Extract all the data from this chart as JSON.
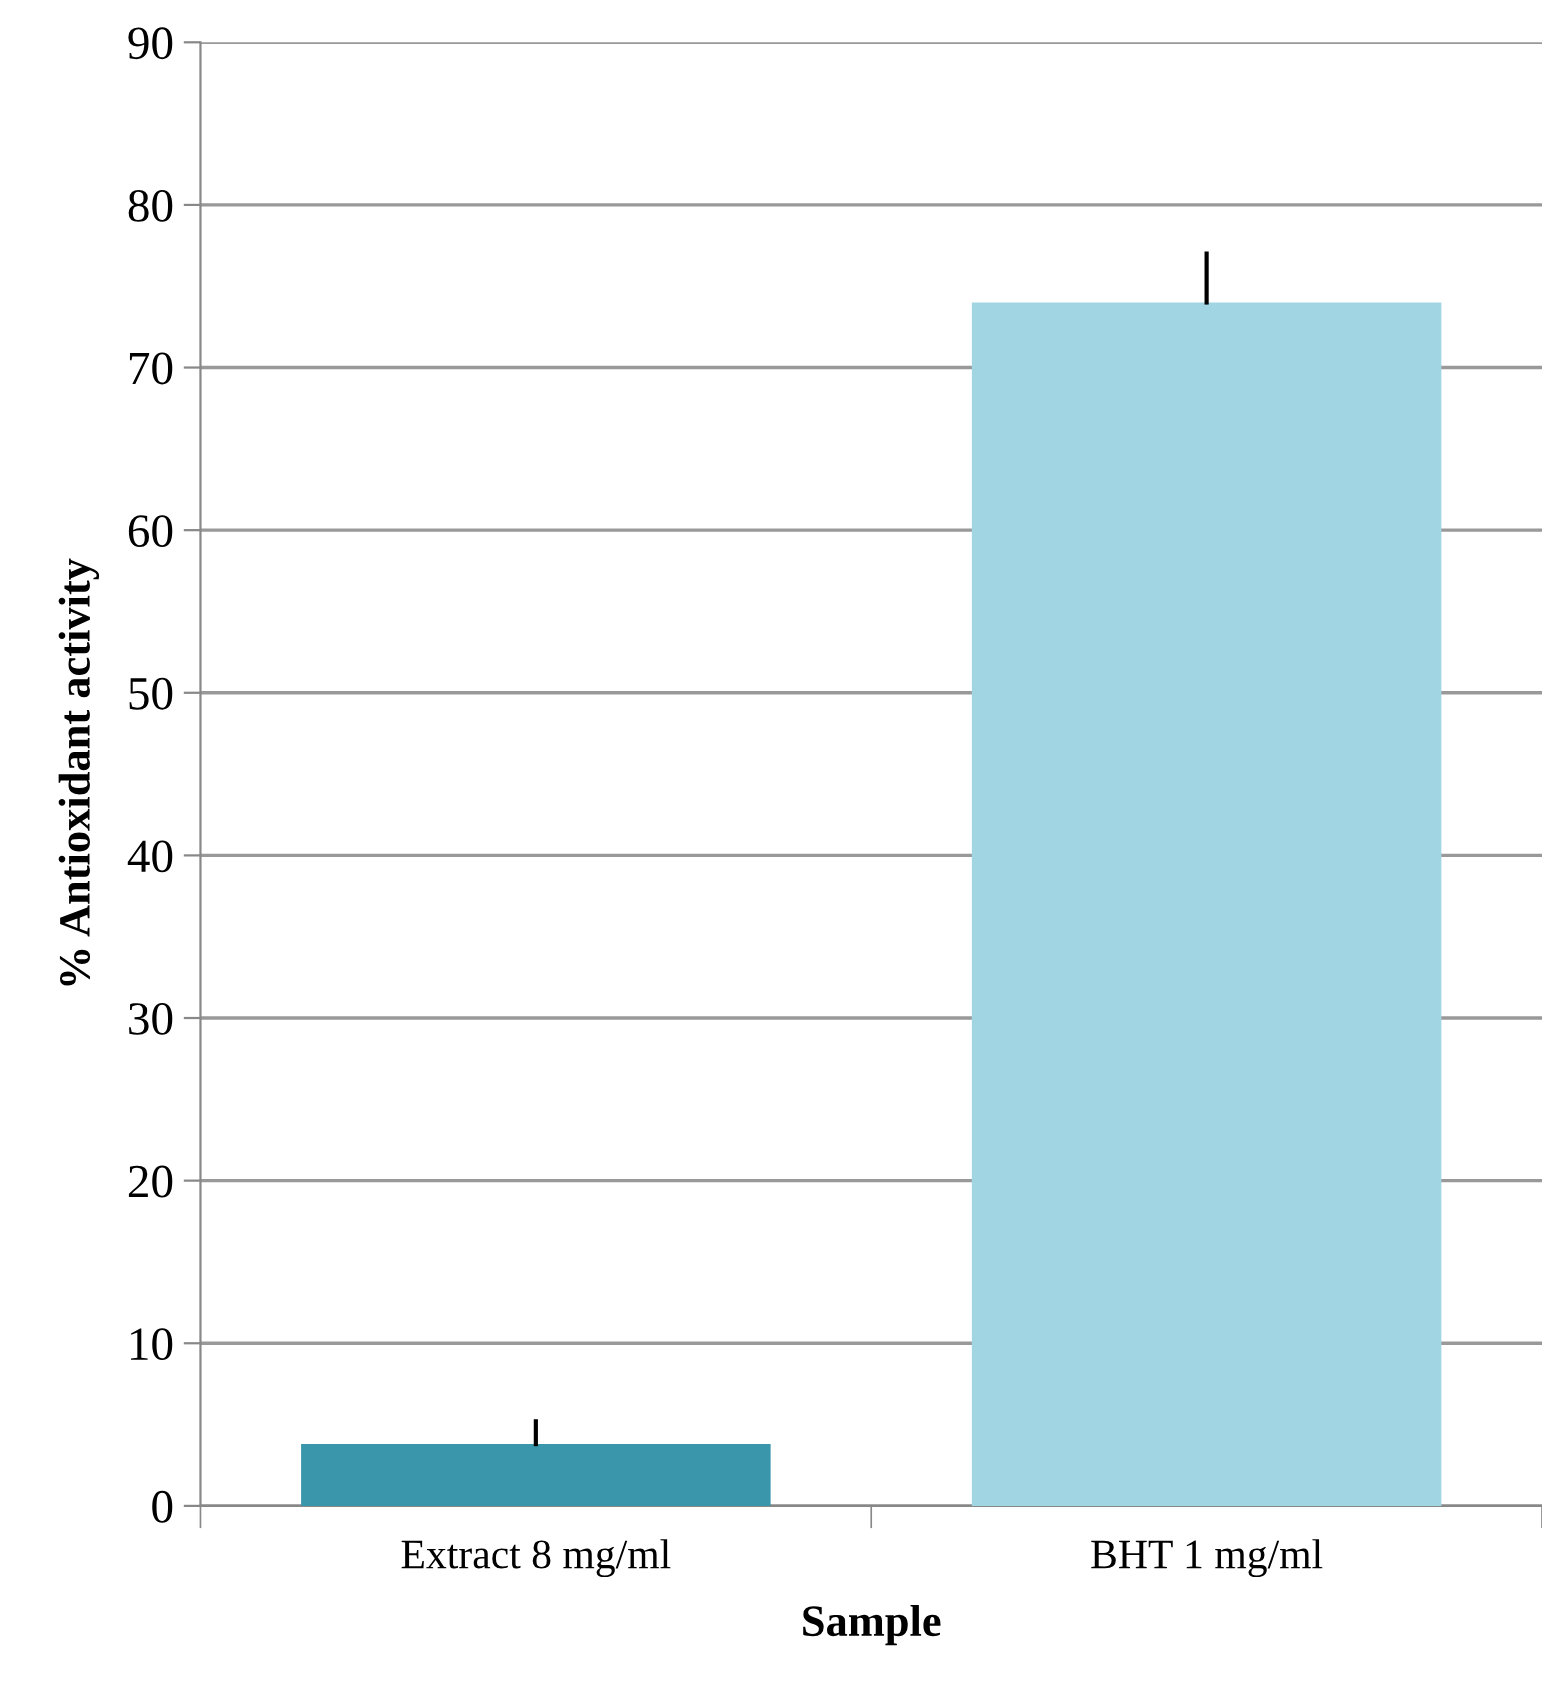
{
  "chart_data": {
    "type": "bar",
    "xlabel": "Sample",
    "ylabel": "% Antioxidant activity",
    "categories": [
      "Extract 8 mg/ml",
      "BHT 1 mg/ml"
    ],
    "values": [
      3.8,
      74
    ],
    "colors": [
      "#3a96aa",
      "#a2d5e3"
    ],
    "errors": [
      [
        3.8,
        5.2
      ],
      [
        74,
        77
      ]
    ],
    "ylim": [
      0,
      90
    ],
    "yticks": [
      0,
      10,
      20,
      30,
      40,
      50,
      60,
      70,
      80,
      90
    ],
    "grid": "y",
    "legend": false
  }
}
